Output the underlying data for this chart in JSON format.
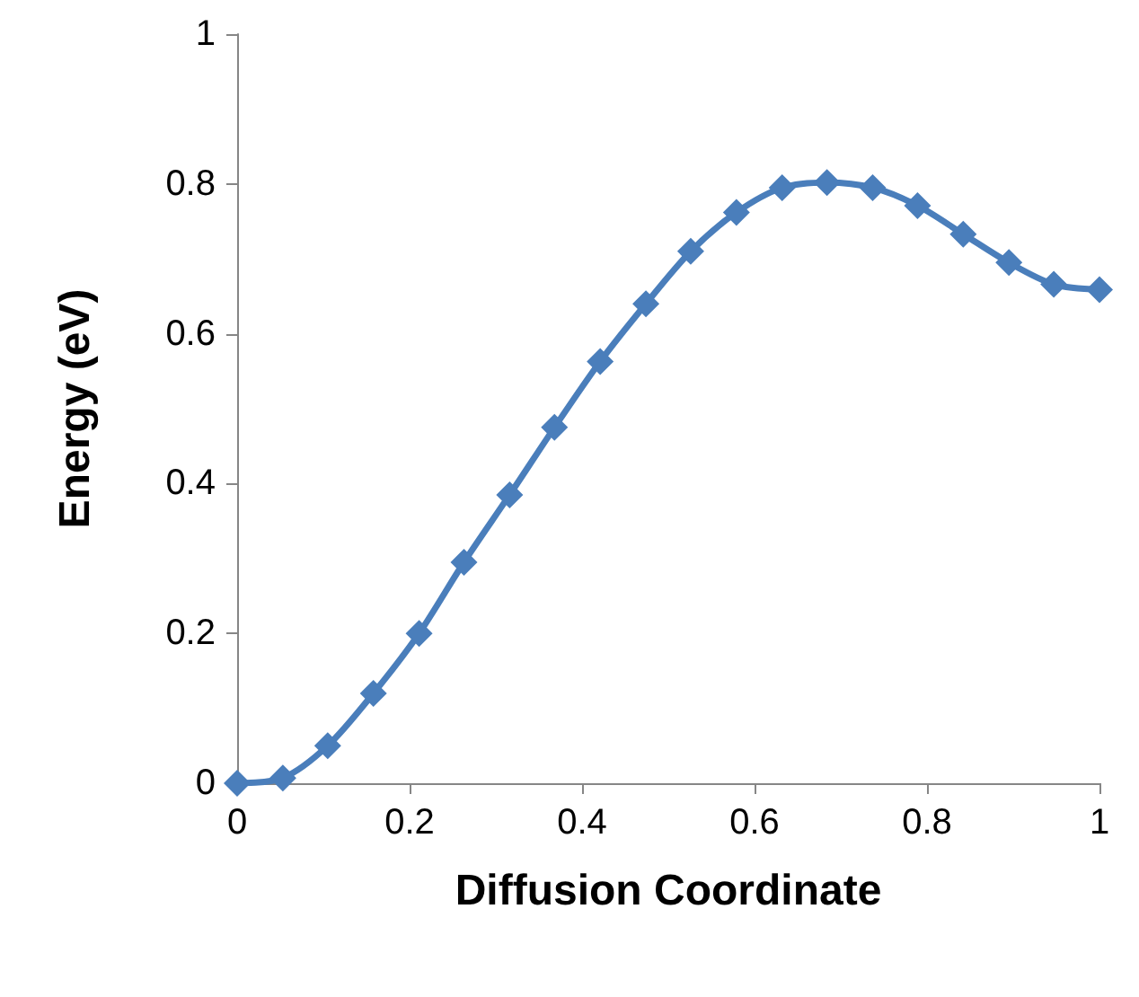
{
  "chart_data": {
    "type": "line",
    "xlabel": "Diffusion Coordinate",
    "ylabel": "Energy (eV)",
    "x": [
      0,
      0.053,
      0.105,
      0.158,
      0.211,
      0.263,
      0.316,
      0.368,
      0.421,
      0.474,
      0.526,
      0.579,
      0.632,
      0.684,
      0.737,
      0.789,
      0.842,
      0.895,
      0.947,
      1
    ],
    "series": [
      {
        "color": "#4a7ebb",
        "values": [
          0,
          0.007,
          0.05,
          0.12,
          0.2,
          0.295,
          0.385,
          0.475,
          0.563,
          0.64,
          0.71,
          0.762,
          0.795,
          0.802,
          0.795,
          0.771,
          0.733,
          0.695,
          0.666,
          0.659
        ]
      }
    ],
    "xlim": [
      0,
      1
    ],
    "xticks": [
      0,
      0.2,
      0.4,
      0.6,
      0.8,
      1
    ],
    "ylim": [
      0,
      1
    ],
    "yticks": [
      0,
      0.2,
      0.4,
      0.6,
      0.8,
      1
    ],
    "marker": "diamond",
    "line_style": "solid"
  }
}
